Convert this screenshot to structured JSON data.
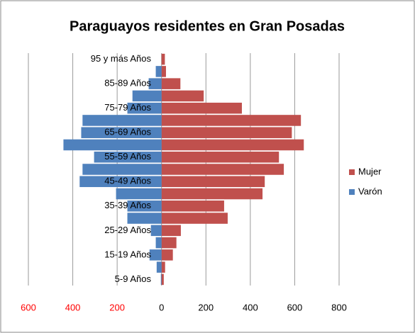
{
  "chart_data": {
    "type": "pyramid",
    "title": "Paraguayos residentes en Gran Posadas",
    "categories": [
      "5-9 Años",
      null,
      "15-19 Años",
      null,
      "25-29 Años",
      null,
      "35-39 Años",
      null,
      "45-49 Años",
      null,
      "55-59 Años",
      null,
      "65-69 Años",
      null,
      "75-79 Años",
      null,
      "85-89 Años",
      null,
      "95 y más Años"
    ],
    "series": [
      {
        "name": "Mujer",
        "color": "#c0504d",
        "values": [
          10,
          16,
          51,
          67,
          87,
          298,
          282,
          455,
          465,
          551,
          529,
          641,
          587,
          628,
          362,
          190,
          85,
          20,
          15
        ]
      },
      {
        "name": "Varón",
        "color": "#4f81bd",
        "values": [
          -3,
          -22,
          -54,
          -26,
          -48,
          -154,
          -154,
          -205,
          -369,
          -356,
          -304,
          -442,
          -362,
          -356,
          -154,
          -131,
          -58,
          -26,
          0
        ]
      }
    ],
    "xlim": [
      -600,
      800
    ],
    "xticks": [
      {
        "value": -600,
        "label": "600"
      },
      {
        "value": -400,
        "label": "400"
      },
      {
        "value": -200,
        "label": "200"
      },
      0,
      200,
      400,
      600,
      800
    ],
    "negative_tick_color": "#ff0000",
    "grid": true,
    "legend": "right"
  }
}
